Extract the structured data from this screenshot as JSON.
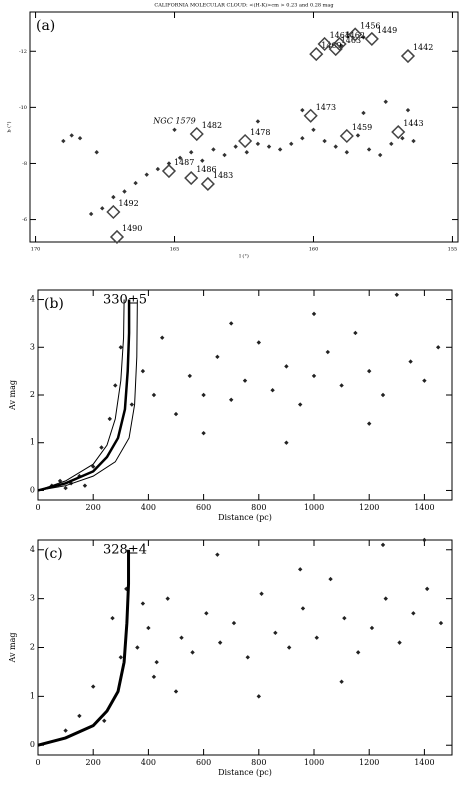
{
  "chart_data": [
    {
      "type": "scatter",
      "panel_label": "(a)",
      "title": "CALIFORNIA MOLECULAR CLOUD: <(H-K)>cm > 0.23 and 0.28 mag",
      "x_label": "l (°)",
      "y_label": "b (°)",
      "xlim": [
        170.2,
        154.8
      ],
      "ylim": [
        -5.2,
        -13.4
      ],
      "xticks": [
        170,
        165,
        160,
        155
      ],
      "yticks": [
        -6,
        -8,
        -10,
        -12
      ],
      "series": [
        {
          "color": "#333333",
          "x": [
            169.0,
            168.7,
            168.4,
            168.0,
            167.6,
            167.2,
            166.8,
            166.4,
            166.0,
            165.6,
            165.2,
            164.8,
            164.4,
            164.0,
            163.6,
            163.2,
            162.8,
            162.4,
            162.0,
            161.6,
            161.2,
            160.8,
            160.4,
            160.0,
            159.6,
            159.2,
            158.8,
            158.4,
            158.0,
            157.6,
            157.2,
            156.8,
            156.4,
            158.2,
            157.4,
            156.6,
            160.4,
            159.0,
            158.2,
            167.8,
            165.0,
            162.0
          ],
          "y": [
            -8.8,
            -9.0,
            -8.9,
            -6.2,
            -6.4,
            -6.8,
            -7.0,
            -7.3,
            -7.6,
            -7.8,
            -8.0,
            -8.2,
            -8.4,
            -8.1,
            -8.5,
            -8.3,
            -8.6,
            -8.4,
            -8.7,
            -8.6,
            -8.5,
            -8.7,
            -8.9,
            -9.2,
            -8.8,
            -8.6,
            -8.4,
            -9.0,
            -8.5,
            -8.3,
            -8.7,
            -8.9,
            -8.8,
            -9.8,
            -10.2,
            -9.9,
            -9.9,
            -12.2,
            -12.5,
            -8.4,
            -9.2,
            -9.5
          ]
        }
      ],
      "clusters": [
        {
          "label": "1490",
          "x": 167.07,
          "y": -5.38
        },
        {
          "label": "1492",
          "x": 167.2,
          "y": -6.27
        },
        {
          "label": "1487",
          "x": 165.2,
          "y": -7.73
        },
        {
          "label": "1486",
          "x": 164.4,
          "y": -7.48
        },
        {
          "label": "1483",
          "x": 163.8,
          "y": -7.27
        },
        {
          "label": "1482",
          "x": 164.2,
          "y": -9.05
        },
        {
          "label": "1478",
          "x": 162.46,
          "y": -8.8
        },
        {
          "label": "1459",
          "x": 158.8,
          "y": -8.98
        },
        {
          "label": "1443",
          "x": 156.95,
          "y": -9.12
        },
        {
          "label": "1473",
          "x": 160.1,
          "y": -9.7
        },
        {
          "label": "1469",
          "x": 159.9,
          "y": -11.9
        },
        {
          "label": "1463",
          "x": 159.2,
          "y": -12.08
        },
        {
          "label": "1464",
          "x": 159.6,
          "y": -12.26
        },
        {
          "label": "1462",
          "x": 159.06,
          "y": -12.26
        },
        {
          "label": "1456",
          "x": 158.5,
          "y": -12.6
        },
        {
          "label": "1449",
          "x": 157.9,
          "y": -12.44
        },
        {
          "label": "1442",
          "x": 156.6,
          "y": -11.83
        }
      ],
      "annotations": [
        {
          "text": "NGC 1579",
          "x": 165.0,
          "y": -9.5
        }
      ]
    },
    {
      "type": "scatter",
      "panel_label": "(b)",
      "annotation": "330±5",
      "x_label": "Distance (pc)",
      "y_label": "Av mag",
      "xlim": [
        0,
        1500
      ],
      "ylim": [
        -0.2,
        4.2
      ],
      "xticks": [
        0,
        200,
        400,
        600,
        800,
        1000,
        1200,
        1400
      ],
      "yticks": [
        0,
        1,
        2,
        3,
        4
      ],
      "series": [
        {
          "color": "#222222",
          "x": [
            50,
            80,
            100,
            120,
            150,
            170,
            200,
            230,
            260,
            280,
            300,
            340,
            380,
            420,
            450,
            500,
            550,
            600,
            650,
            700,
            750,
            800,
            850,
            900,
            950,
            1000,
            1050,
            1100,
            1150,
            1200,
            1250,
            1300,
            1350,
            1400,
            1450,
            600,
            900,
            1200,
            700,
            1000
          ],
          "y": [
            0.1,
            0.2,
            0.05,
            0.15,
            0.3,
            0.1,
            0.5,
            0.9,
            1.5,
            2.2,
            3.0,
            1.8,
            2.5,
            2.0,
            3.2,
            1.6,
            2.4,
            2.0,
            2.8,
            1.9,
            2.3,
            3.1,
            2.1,
            2.6,
            1.8,
            2.4,
            2.9,
            2.2,
            3.3,
            2.5,
            2.0,
            4.1,
            2.7,
            2.3,
            3.0,
            1.2,
            1.0,
            1.4,
            3.5,
            3.7
          ]
        }
      ],
      "lines": [
        {
          "color": "#000000",
          "width": 2.5,
          "x": [
            0,
            100,
            200,
            250,
            290,
            315,
            325,
            330,
            330
          ],
          "y": [
            0,
            0.15,
            0.4,
            0.7,
            1.1,
            1.7,
            2.5,
            3.3,
            4.0
          ]
        },
        {
          "color": "#000000",
          "width": 1,
          "x": [
            0,
            100,
            200,
            250,
            280,
            300,
            310,
            312
          ],
          "y": [
            0,
            0.2,
            0.55,
            0.95,
            1.5,
            2.3,
            3.2,
            4.0
          ]
        },
        {
          "color": "#000000",
          "width": 1,
          "x": [
            0,
            100,
            200,
            280,
            330,
            350,
            358,
            360
          ],
          "y": [
            0,
            0.1,
            0.3,
            0.6,
            1.1,
            1.8,
            2.8,
            4.0
          ]
        }
      ]
    },
    {
      "type": "scatter",
      "panel_label": "(c)",
      "annotation": "328±4",
      "x_label": "Distance (pc)",
      "y_label": "Av mag",
      "xlim": [
        0,
        1500
      ],
      "ylim": [
        -0.2,
        4.2
      ],
      "xticks": [
        0,
        200,
        400,
        600,
        800,
        1000,
        1200,
        1400
      ],
      "yticks": [
        0,
        1,
        2,
        3,
        4
      ],
      "series": [
        {
          "color": "#222222",
          "x": [
            100,
            150,
            200,
            240,
            270,
            300,
            320,
            360,
            400,
            430,
            470,
            520,
            560,
            610,
            660,
            710,
            760,
            810,
            860,
            910,
            960,
            1010,
            1060,
            1110,
            1160,
            1210,
            1260,
            1310,
            1360,
            1410,
            1460,
            500,
            800,
            1100,
            650,
            950,
            1250,
            380,
            420,
            1400
          ],
          "y": [
            0.3,
            0.6,
            1.2,
            0.5,
            2.6,
            1.8,
            3.2,
            2.0,
            2.4,
            1.7,
            3.0,
            2.2,
            1.9,
            2.7,
            2.1,
            2.5,
            1.8,
            3.1,
            2.3,
            2.0,
            2.8,
            2.2,
            3.4,
            2.6,
            1.9,
            2.4,
            3.0,
            2.1,
            2.7,
            3.2,
            2.5,
            1.1,
            1.0,
            1.3,
            3.9,
            3.6,
            4.1,
            2.9,
            1.4,
            4.2
          ]
        }
      ],
      "lines": [
        {
          "color": "#000000",
          "width": 3,
          "x": [
            0,
            100,
            200,
            250,
            290,
            312,
            322,
            328,
            328
          ],
          "y": [
            0,
            0.15,
            0.4,
            0.7,
            1.1,
            1.7,
            2.5,
            3.3,
            4.0
          ]
        }
      ]
    }
  ]
}
